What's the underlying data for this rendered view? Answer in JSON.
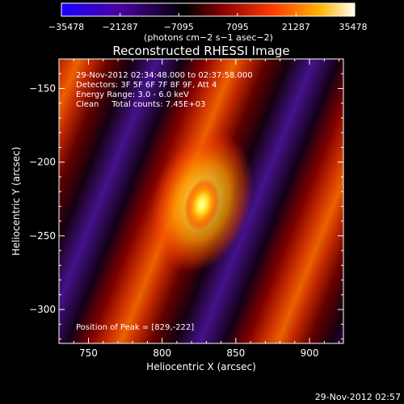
{
  "chart_data": {
    "type": "heatmap",
    "title": "Reconstructed RHESSI Image",
    "xlabel": "Heliocentric X (arcsec)",
    "ylabel": "Heliocentric Y (arcsec)",
    "xlim": [
      730,
      923
    ],
    "ylim": [
      -323,
      -130
    ],
    "x_ticks": [
      750,
      800,
      850,
      900
    ],
    "y_ticks": [
      -150,
      -200,
      -250,
      -300
    ],
    "x_tick_labels": [
      "750",
      "800",
      "850",
      "900"
    ],
    "y_tick_labels": [
      "−150",
      "−200",
      "−250",
      "−300"
    ],
    "peak": {
      "x": 829,
      "y": -222
    },
    "colorbar": {
      "min": -35478,
      "max": 35478,
      "ticks": [
        -35478,
        -21287,
        -7095,
        7095,
        21287,
        35478
      ],
      "tick_labels": [
        "−35478",
        "−21287",
        "−7095",
        "7095",
        "21287",
        "35478"
      ],
      "units": "(photons cm−2 s−1 asec−2)",
      "colors": [
        "#1a00ff",
        "#4a00a0",
        "#000000",
        "#8a0000",
        "#ff3a00",
        "#ffb300",
        "#ffffee"
      ]
    },
    "annotations": {
      "time_range": "29-Nov-2012 02:34:48.000 to 02:37:58.000",
      "detectors": "Detectors: 3F 5F 6F 7F 8F 9F, Att 4",
      "energy_range": "Energy Range: 3.0 - 6.0 keV",
      "method_counts": "Clean     Total counts: 7.45E+03",
      "peak_position": "Position of Peak = [829,-222]"
    },
    "grid": false
  },
  "footer": {
    "timestamp": "29-Nov-2012 02:57"
  }
}
